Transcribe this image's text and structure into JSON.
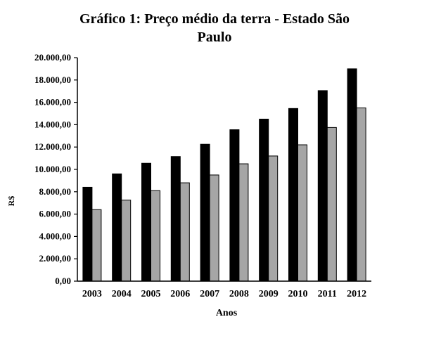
{
  "chart_data": {
    "type": "bar",
    "title_line1": "Gráfico 1: Preço médio da terra -  Estado São",
    "title_line2": "Paulo",
    "xlabel": "Anos",
    "ylabel": "R$",
    "ylim": [
      0,
      20000
    ],
    "ytick_step": 2000,
    "ytick_labels": [
      "0,00",
      "2.000,00",
      "4.000,00",
      "6.000,00",
      "8.000,00",
      "10.000,00",
      "12.000,00",
      "14.000,00",
      "16.000,00",
      "18.000,00",
      "20.000,00"
    ],
    "categories": [
      "2003",
      "2004",
      "2005",
      "2006",
      "2007",
      "2008",
      "2009",
      "2010",
      "2011",
      "2012"
    ],
    "series": [
      {
        "color": "#000000",
        "values": [
          8400,
          9600,
          10550,
          11150,
          12250,
          13550,
          14500,
          15450,
          17050,
          19000
        ]
      },
      {
        "color": "#a6a6a6",
        "values": [
          6400,
          7250,
          8100,
          8800,
          9500,
          10500,
          11200,
          12200,
          13750,
          15500
        ]
      }
    ],
    "grid": false,
    "legend": "none"
  }
}
